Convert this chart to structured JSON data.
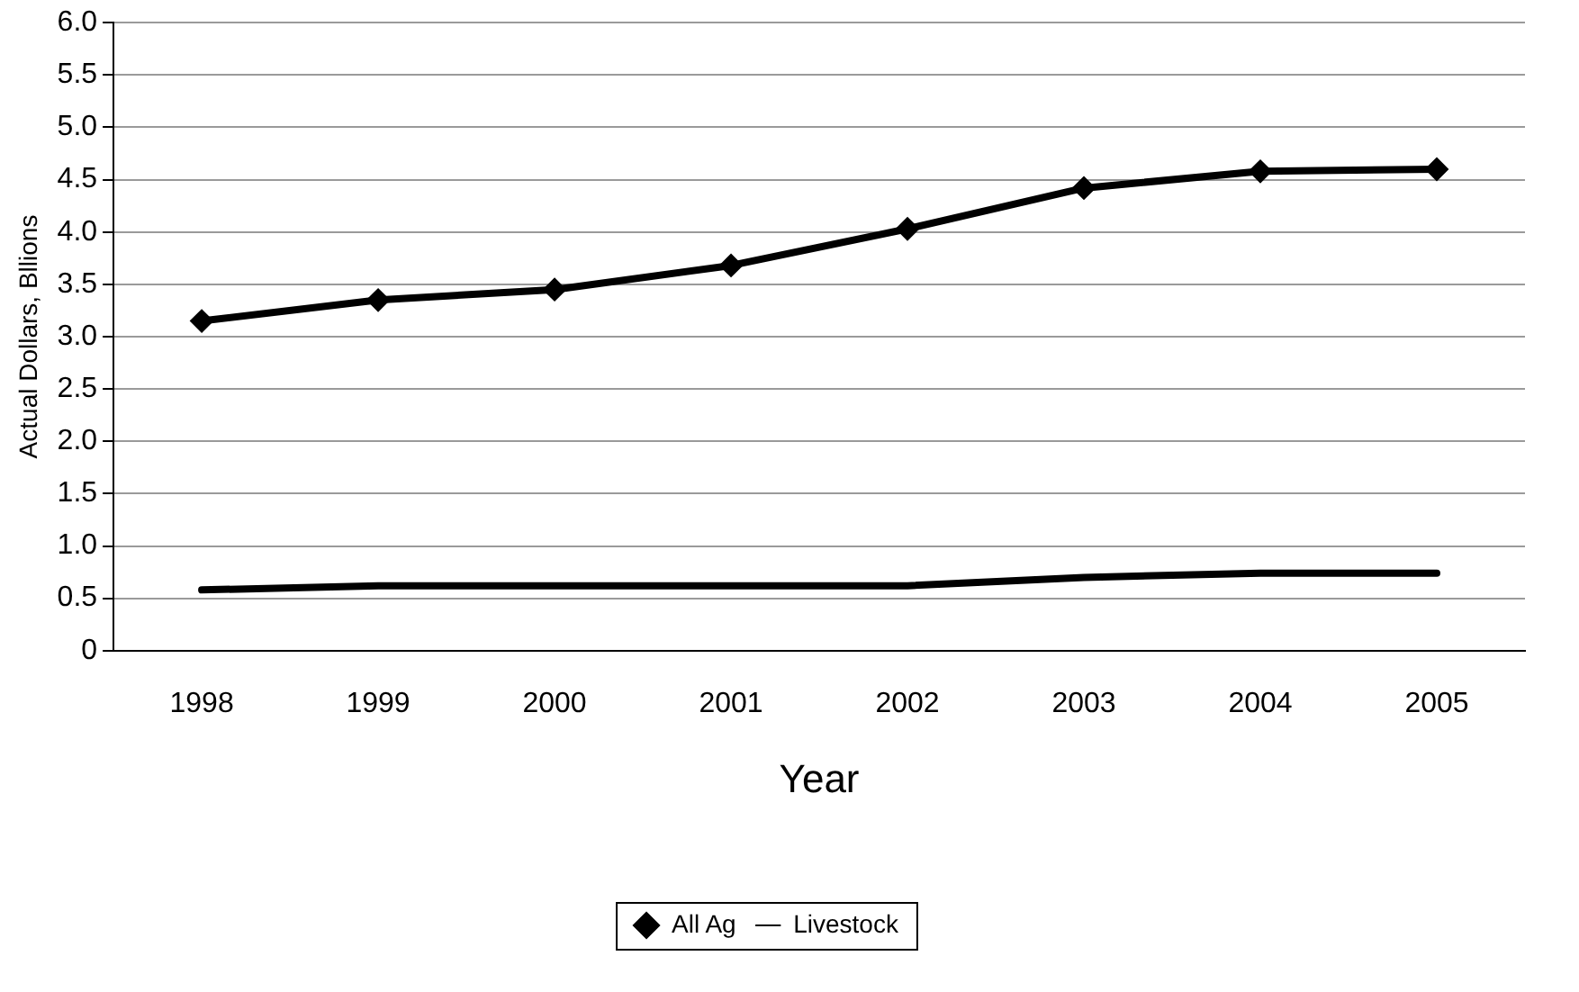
{
  "chart_data": {
    "type": "line",
    "xlabel": "Year",
    "ylabel": "Actual Dollars, Bllions",
    "categories": [
      "1998",
      "1999",
      "2000",
      "2001",
      "2002",
      "2003",
      "2004",
      "2005"
    ],
    "series": [
      {
        "name": "All Ag",
        "color": "#000000",
        "marker": "diamond",
        "values": [
          3.15,
          3.35,
          3.45,
          3.68,
          4.03,
          4.42,
          4.58,
          4.6
        ]
      },
      {
        "name": "Livestock",
        "color": "#000000",
        "marker": "none",
        "values": [
          0.58,
          0.62,
          0.62,
          0.62,
          0.62,
          0.7,
          0.74,
          0.74
        ]
      }
    ],
    "ylim": [
      0,
      6
    ],
    "yticks": [
      0,
      {
        "value": 0.5,
        "label": "0.5"
      },
      {
        "value": 1,
        "label": "1.0"
      },
      {
        "value": 1.5,
        "label": "1.5"
      },
      {
        "value": 2,
        "label": "2.0"
      },
      {
        "value": 2.5,
        "label": "2.5"
      },
      {
        "value": 3,
        "label": "3.0"
      },
      {
        "value": 3.5,
        "label": "3.5"
      },
      {
        "value": 4,
        "label": "4.0"
      },
      {
        "value": 4.5,
        "label": "4.5"
      },
      {
        "value": 5,
        "label": "5.0"
      },
      {
        "value": 5.5,
        "label": "5.5"
      },
      {
        "value": 6,
        "label": "6.0"
      }
    ],
    "grid": "y",
    "legend": "bottom",
    "line_style": "solid"
  }
}
